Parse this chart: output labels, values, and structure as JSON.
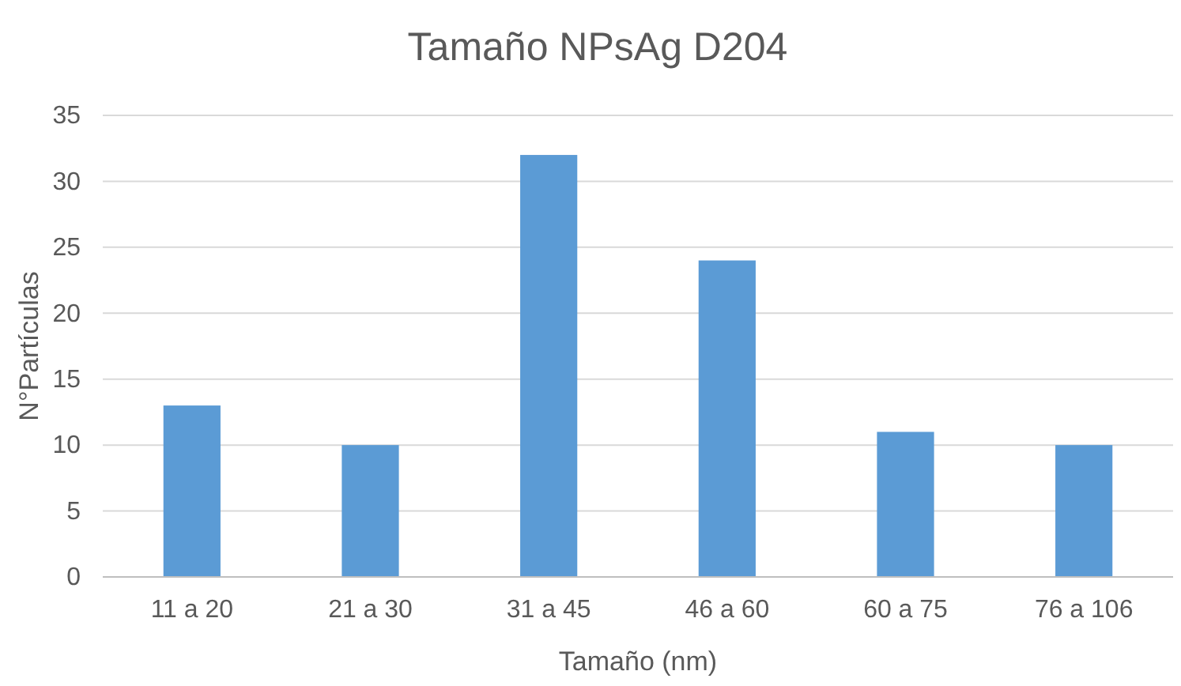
{
  "chart_data": {
    "type": "bar",
    "title": "Tamaño NPsAg D204",
    "xlabel": "Tamaño (nm)",
    "ylabel": "N°Partículas",
    "categories": [
      "11 a 20",
      "21 a 30",
      "31 a 45",
      "46 a 60",
      "60 a 75",
      "76 a 106"
    ],
    "values": [
      13,
      10,
      32,
      24,
      11,
      10
    ],
    "color": "#5b9bd5",
    "ylim": [
      0,
      35
    ],
    "yticks": [
      0,
      5,
      10,
      15,
      20,
      25,
      30,
      35
    ],
    "grid": "y"
  }
}
